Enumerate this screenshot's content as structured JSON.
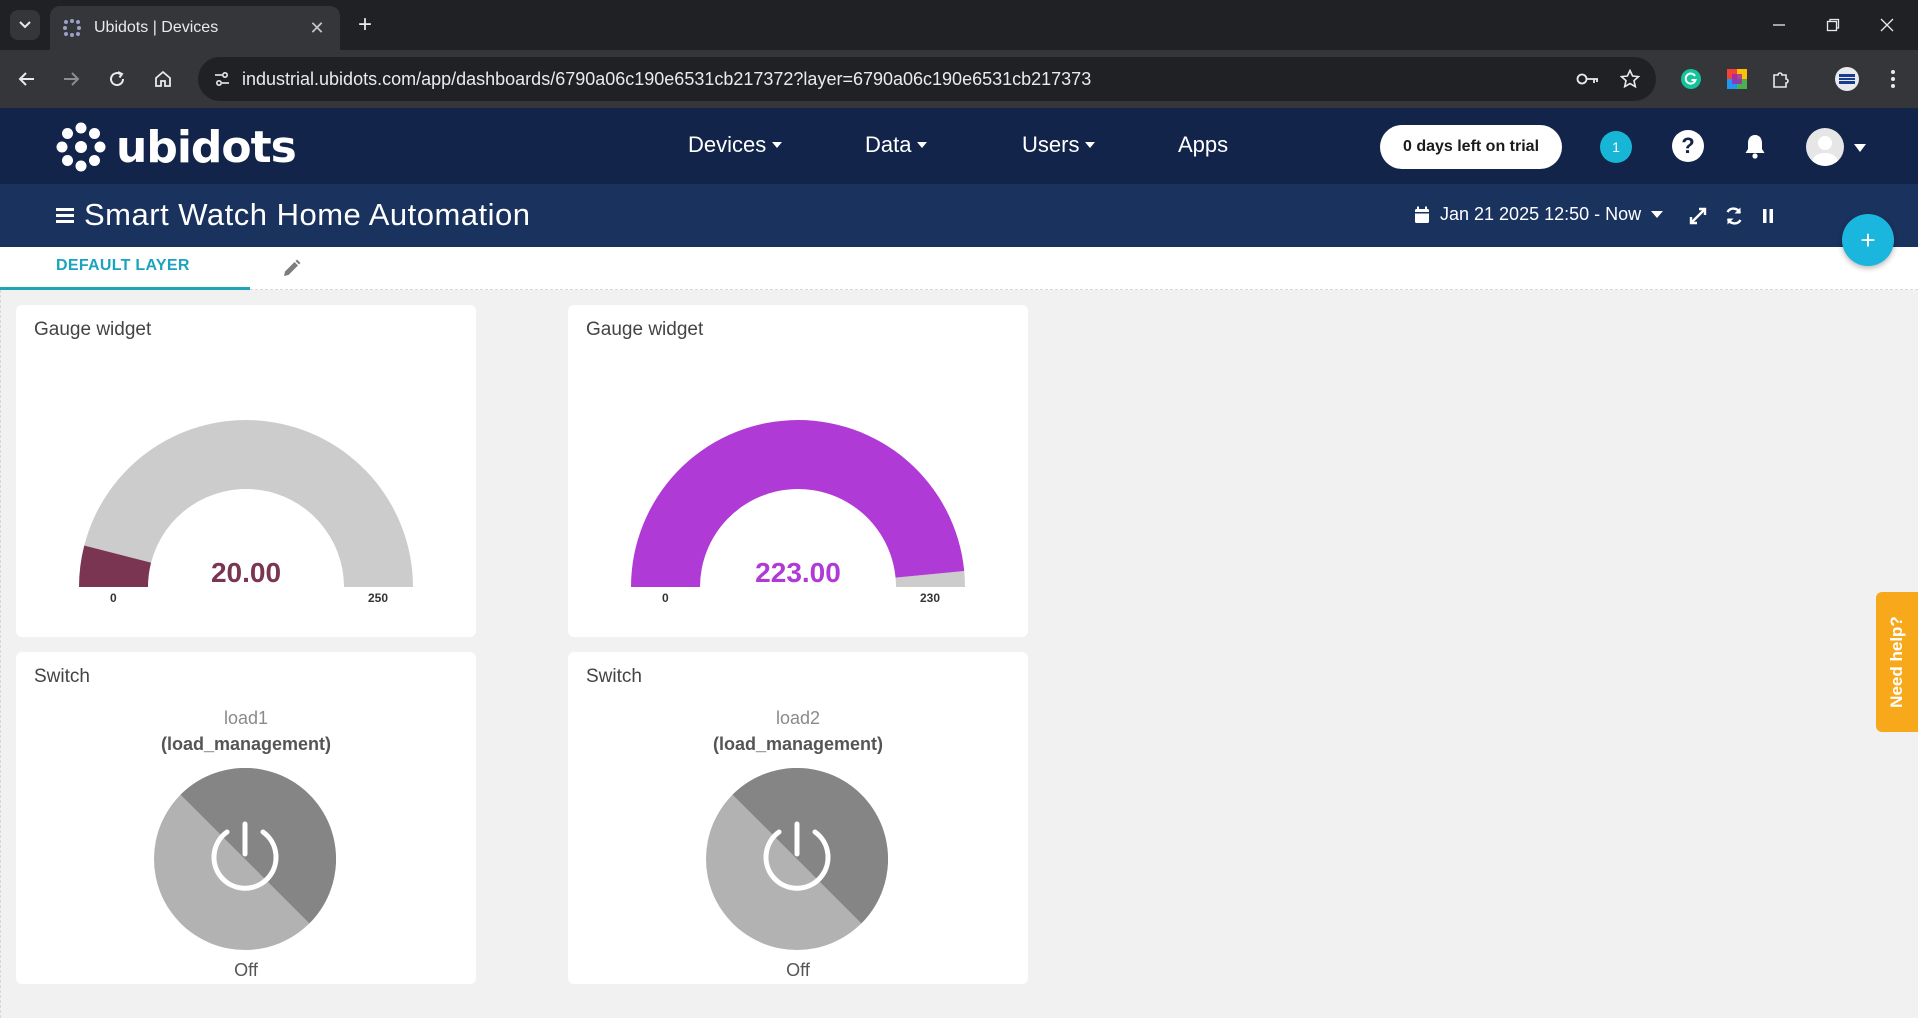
{
  "browser": {
    "tab_title": "Ubidots | Devices",
    "url": "industrial.ubidots.com/app/dashboards/6790a06c190e6531cb217372?layer=6790a06c190e6531cb217373"
  },
  "header": {
    "logo_text": "ubidots",
    "nav": [
      {
        "label": "Devices"
      },
      {
        "label": "Data"
      },
      {
        "label": "Users"
      },
      {
        "label": "Apps"
      }
    ],
    "trial_label": "0 days left on trial",
    "notification_count": "1",
    "help_label": "?"
  },
  "dashboard": {
    "title": "Smart Watch Home Automation",
    "date_range": "Jan 21 2025 12:50 - Now",
    "layer_tab": "DEFAULT LAYER",
    "fab_label": "+"
  },
  "widgets": {
    "gauge1": {
      "title": "Gauge widget",
      "value": 20,
      "value_text": "20.00",
      "min": "0",
      "max": "250",
      "fill_color": "#7a3553",
      "track_color": "#cccccc"
    },
    "gauge2": {
      "title": "Gauge widget",
      "value": 223,
      "value_text": "223.00",
      "min": "0",
      "max": "230",
      "fill_color": "#b03ad6",
      "track_color": "#cccccc"
    },
    "switch1": {
      "title": "Switch",
      "label": "load1",
      "variable": "(load_management)",
      "state": "Off"
    },
    "switch2": {
      "title": "Switch",
      "label": "load2",
      "variable": "(load_management)",
      "state": "Off"
    }
  },
  "help_tab": "Need help?"
}
